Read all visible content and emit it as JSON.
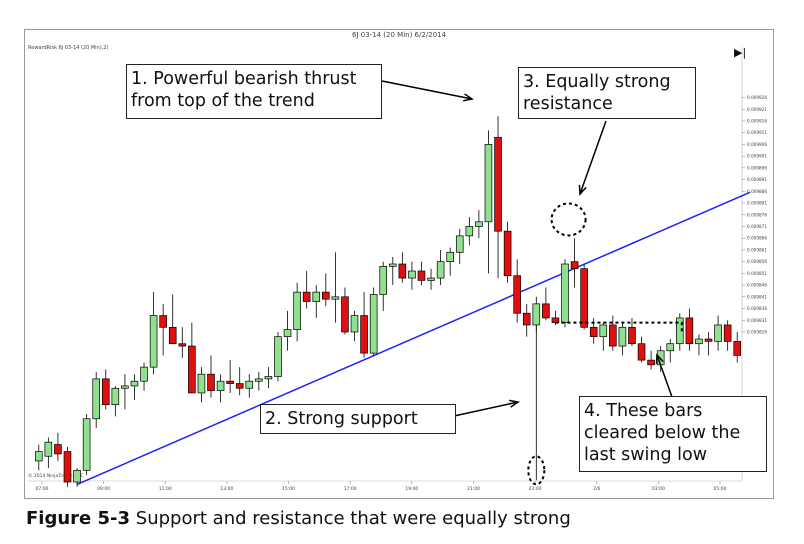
{
  "chart_title": "6J 03-14 (20 Min)  6/2/2014",
  "instrument_label": "RewardRisk 6J 03-14 (20 Min),2)",
  "copyright": "© 2014 NinjaTrader, LLC",
  "caption": {
    "figure": "Figure 5-3",
    "text": "Support and resistance that were equally strong"
  },
  "annotations": {
    "a1": [
      "1. Powerful bearish thrust",
      "from top of the trend"
    ],
    "a2": "2. Strong support",
    "a3": [
      "3. Equally strong",
      "resistance"
    ],
    "a4": [
      "4. These bars",
      "cleared below the",
      "last swing low"
    ]
  },
  "colors": {
    "bull": "#90e090",
    "bear": "#e01010",
    "trendline": "#2020ff",
    "wick": "#000000"
  },
  "chart_data": {
    "type": "candlestick",
    "title": "6J 03-14 (20 Min)  6/2/2014",
    "ylim": [
      0.009765,
      0.009945
    ],
    "y_ticks": [
      "0.009926",
      "0.009921",
      "0.009916",
      "0.009911",
      "0.009906",
      "0.009901",
      "0.009896",
      "0.009891",
      "0.009886",
      "0.009881",
      "0.009876",
      "0.009871",
      "0.009866",
      "0.009861",
      "0.009856",
      "0.009851",
      "0.009846",
      "0.009841",
      "0.009836",
      "0.009831",
      "0.009826"
    ],
    "x_tick_labels": [
      "07:00",
      "09:00",
      "11:00",
      "13:00",
      "15:00",
      "17:00",
      "19:00",
      "21:00",
      "23:00",
      "2/6",
      "03:00",
      "05:00"
    ],
    "candles": [
      {
        "o": 0.009771,
        "h": 0.009778,
        "l": 0.009767,
        "c": 0.009775
      },
      {
        "o": 0.009773,
        "h": 0.009781,
        "l": 0.009768,
        "c": 0.009779
      },
      {
        "o": 0.009778,
        "h": 0.009783,
        "l": 0.009771,
        "c": 0.009774
      },
      {
        "o": 0.009775,
        "h": 0.009777,
        "l": 0.00976,
        "c": 0.009762
      },
      {
        "o": 0.009762,
        "h": 0.009768,
        "l": 0.00976,
        "c": 0.009767
      },
      {
        "o": 0.009767,
        "h": 0.009791,
        "l": 0.009765,
        "c": 0.009789
      },
      {
        "o": 0.009789,
        "h": 0.009809,
        "l": 0.009785,
        "c": 0.009806
      },
      {
        "o": 0.009806,
        "h": 0.00981,
        "l": 0.009793,
        "c": 0.009795
      },
      {
        "o": 0.009795,
        "h": 0.009803,
        "l": 0.00979,
        "c": 0.009802
      },
      {
        "o": 0.009802,
        "h": 0.009808,
        "l": 0.009793,
        "c": 0.009803
      },
      {
        "o": 0.009803,
        "h": 0.009808,
        "l": 0.009797,
        "c": 0.009805
      },
      {
        "o": 0.009805,
        "h": 0.009813,
        "l": 0.009801,
        "c": 0.009811
      },
      {
        "o": 0.009811,
        "h": 0.009843,
        "l": 0.009808,
        "c": 0.009833
      },
      {
        "o": 0.009833,
        "h": 0.009838,
        "l": 0.009816,
        "c": 0.009828
      },
      {
        "o": 0.009828,
        "h": 0.009842,
        "l": 0.009822,
        "c": 0.009821
      },
      {
        "o": 0.009821,
        "h": 0.009828,
        "l": 0.009815,
        "c": 0.00982
      },
      {
        "o": 0.00982,
        "h": 0.00983,
        "l": 0.0098,
        "c": 0.0098
      },
      {
        "o": 0.0098,
        "h": 0.009811,
        "l": 0.009796,
        "c": 0.009808
      },
      {
        "o": 0.009808,
        "h": 0.009816,
        "l": 0.009798,
        "c": 0.009801
      },
      {
        "o": 0.009801,
        "h": 0.009808,
        "l": 0.009796,
        "c": 0.009805
      },
      {
        "o": 0.009805,
        "h": 0.009814,
        "l": 0.0098,
        "c": 0.009804
      },
      {
        "o": 0.009804,
        "h": 0.009811,
        "l": 0.009799,
        "c": 0.009802
      },
      {
        "o": 0.009802,
        "h": 0.009808,
        "l": 0.009798,
        "c": 0.009805
      },
      {
        "o": 0.009805,
        "h": 0.009809,
        "l": 0.009801,
        "c": 0.009806
      },
      {
        "o": 0.009806,
        "h": 0.009811,
        "l": 0.009802,
        "c": 0.009807
      },
      {
        "o": 0.009807,
        "h": 0.009826,
        "l": 0.009805,
        "c": 0.009824
      },
      {
        "o": 0.009824,
        "h": 0.009835,
        "l": 0.009818,
        "c": 0.009827
      },
      {
        "o": 0.009827,
        "h": 0.009847,
        "l": 0.009822,
        "c": 0.009843
      },
      {
        "o": 0.009843,
        "h": 0.009852,
        "l": 0.009836,
        "c": 0.009839
      },
      {
        "o": 0.009839,
        "h": 0.009846,
        "l": 0.009832,
        "c": 0.009843
      },
      {
        "o": 0.009843,
        "h": 0.009851,
        "l": 0.009837,
        "c": 0.00984
      },
      {
        "o": 0.00984,
        "h": 0.00986,
        "l": 0.00983,
        "c": 0.009841
      },
      {
        "o": 0.009841,
        "h": 0.009845,
        "l": 0.009825,
        "c": 0.009826
      },
      {
        "o": 0.009826,
        "h": 0.009835,
        "l": 0.009822,
        "c": 0.009833
      },
      {
        "o": 0.009833,
        "h": 0.009843,
        "l": 0.009815,
        "c": 0.009817
      },
      {
        "o": 0.009817,
        "h": 0.009845,
        "l": 0.009816,
        "c": 0.009842
      },
      {
        "o": 0.009842,
        "h": 0.009856,
        "l": 0.009835,
        "c": 0.009854
      },
      {
        "o": 0.009854,
        "h": 0.009858,
        "l": 0.009846,
        "c": 0.009855
      },
      {
        "o": 0.009855,
        "h": 0.00986,
        "l": 0.009847,
        "c": 0.009849
      },
      {
        "o": 0.009849,
        "h": 0.009856,
        "l": 0.009844,
        "c": 0.009852
      },
      {
        "o": 0.009852,
        "h": 0.009856,
        "l": 0.009846,
        "c": 0.009848
      },
      {
        "o": 0.009848,
        "h": 0.009853,
        "l": 0.009844,
        "c": 0.009849
      },
      {
        "o": 0.009849,
        "h": 0.009861,
        "l": 0.009846,
        "c": 0.009856
      },
      {
        "o": 0.009856,
        "h": 0.009862,
        "l": 0.00985,
        "c": 0.00986
      },
      {
        "o": 0.00986,
        "h": 0.00987,
        "l": 0.009855,
        "c": 0.009867
      },
      {
        "o": 0.009867,
        "h": 0.009875,
        "l": 0.009863,
        "c": 0.009871
      },
      {
        "o": 0.009871,
        "h": 0.009878,
        "l": 0.009866,
        "c": 0.009873
      },
      {
        "o": 0.009873,
        "h": 0.009912,
        "l": 0.009851,
        "c": 0.009906
      },
      {
        "o": 0.009909,
        "h": 0.009918,
        "l": 0.009849,
        "c": 0.009869
      },
      {
        "o": 0.009869,
        "h": 0.009873,
        "l": 0.009847,
        "c": 0.00985
      },
      {
        "o": 0.00985,
        "h": 0.009857,
        "l": 0.00983,
        "c": 0.009834
      },
      {
        "o": 0.009834,
        "h": 0.009838,
        "l": 0.009824,
        "c": 0.009829
      },
      {
        "o": 0.009829,
        "h": 0.009841,
        "l": 0.009826,
        "c": 0.009838
      },
      {
        "o": 0.009838,
        "h": 0.009845,
        "l": 0.009831,
        "c": 0.009832
      },
      {
        "o": 0.009832,
        "h": 0.009835,
        "l": 0.009829,
        "c": 0.00983
      },
      {
        "o": 0.00983,
        "h": 0.009857,
        "l": 0.009828,
        "c": 0.009855
      },
      {
        "o": 0.009856,
        "h": 0.009866,
        "l": 0.009845,
        "c": 0.009853
      },
      {
        "o": 0.009853,
        "h": 0.009855,
        "l": 0.009827,
        "c": 0.009828
      },
      {
        "o": 0.009828,
        "h": 0.009832,
        "l": 0.009821,
        "c": 0.009824
      },
      {
        "o": 0.009824,
        "h": 0.00983,
        "l": 0.009818,
        "c": 0.009829
      },
      {
        "o": 0.009829,
        "h": 0.009833,
        "l": 0.009818,
        "c": 0.00982
      },
      {
        "o": 0.00982,
        "h": 0.00983,
        "l": 0.009816,
        "c": 0.009828
      },
      {
        "o": 0.009828,
        "h": 0.009832,
        "l": 0.00982,
        "c": 0.009821
      },
      {
        "o": 0.009821,
        "h": 0.009824,
        "l": 0.009813,
        "c": 0.009814
      },
      {
        "o": 0.009814,
        "h": 0.009818,
        "l": 0.00981,
        "c": 0.009812
      },
      {
        "o": 0.009812,
        "h": 0.00982,
        "l": 0.009809,
        "c": 0.009818
      },
      {
        "o": 0.009818,
        "h": 0.009823,
        "l": 0.009813,
        "c": 0.009821
      },
      {
        "o": 0.009821,
        "h": 0.009834,
        "l": 0.009818,
        "c": 0.009832
      },
      {
        "o": 0.009832,
        "h": 0.009836,
        "l": 0.009818,
        "c": 0.009821
      },
      {
        "o": 0.009821,
        "h": 0.009825,
        "l": 0.009816,
        "c": 0.009823
      },
      {
        "o": 0.009823,
        "h": 0.009826,
        "l": 0.009816,
        "c": 0.009822
      },
      {
        "o": 0.009822,
        "h": 0.009833,
        "l": 0.009818,
        "c": 0.009829
      },
      {
        "o": 0.009829,
        "h": 0.009831,
        "l": 0.009818,
        "c": 0.009822
      },
      {
        "o": 0.009822,
        "h": 0.009826,
        "l": 0.009813,
        "c": 0.009816
      }
    ],
    "trendline": {
      "from": {
        "i": 4,
        "y": 0.009761
      },
      "to": {
        "i": 74,
        "y": 0.009885
      }
    },
    "support_level": 0.009767,
    "resistance_level": 0.009874,
    "swing_low_level": 0.00983
  }
}
